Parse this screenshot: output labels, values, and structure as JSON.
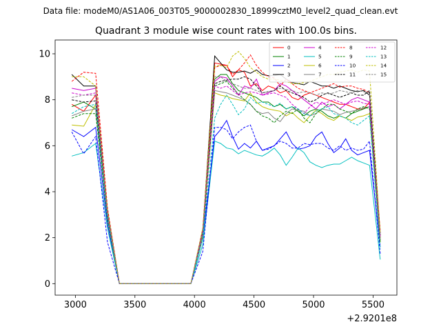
{
  "header": {
    "data_file": "Data file: modeM0/AS1A06_003T05_9000002830_18999cztM0_level2_quad_clean.evt"
  },
  "chart_data": {
    "type": "line",
    "title": "Quadrant 3 module wise count rates with 100.0s bins.",
    "xlabel": "",
    "ylabel": "",
    "x_offset_label": "+2.9201e8",
    "xlim": [
      2830,
      5700
    ],
    "ylim": [
      -0.5,
      10.6
    ],
    "xticks": [
      3000,
      3500,
      4000,
      4500,
      5000,
      5500
    ],
    "xtick_labels": [
      "3000",
      "3500",
      "4000",
      "4500",
      "5000",
      "5500"
    ],
    "yticks": [
      0,
      2,
      4,
      6,
      8,
      10
    ],
    "ytick_labels": [
      "0",
      "2",
      "4",
      "6",
      "8",
      "10"
    ],
    "grid": false,
    "legend_position": "top-right",
    "x": [
      2970,
      3070,
      3170,
      3270,
      3370,
      3470,
      3570,
      3670,
      3770,
      3870,
      3970,
      4070,
      4170,
      4220,
      4270,
      4320,
      4370,
      4420,
      4470,
      4520,
      4570,
      4620,
      4670,
      4720,
      4770,
      4820,
      4870,
      4920,
      4970,
      5020,
      5070,
      5120,
      5170,
      5220,
      5270,
      5320,
      5370,
      5420,
      5470,
      5560
    ],
    "series": [
      {
        "name": "0",
        "color": "#ff0000",
        "dash": "solid",
        "values": [
          7.8,
          7.5,
          8.2,
          3.0,
          0,
          0,
          0,
          0,
          0,
          0,
          0,
          2.2,
          9.6,
          9.55,
          9.5,
          9.0,
          9.3,
          9.2,
          8.6,
          8.7,
          8.4,
          8.6,
          8.5,
          8.3,
          8.4,
          8.1,
          8.0,
          8.2,
          8.3,
          8.2,
          8.1,
          8.0,
          7.9,
          7.8,
          7.8,
          7.7,
          7.6,
          7.6,
          7.9,
          2.0
        ]
      },
      {
        "name": "1",
        "color": "#008000",
        "dash": "solid",
        "values": [
          7.7,
          7.9,
          7.6,
          2.9,
          0,
          0,
          0,
          0,
          0,
          0,
          0,
          2.1,
          8.9,
          9.1,
          9.1,
          8.7,
          8.4,
          8.3,
          8.2,
          8.1,
          7.9,
          7.9,
          7.7,
          7.8,
          7.6,
          7.7,
          7.5,
          7.3,
          7.5,
          7.6,
          7.5,
          7.3,
          7.2,
          7.3,
          7.2,
          7.4,
          7.5,
          7.6,
          7.7,
          1.9
        ]
      },
      {
        "name": "2",
        "color": "#0000ff",
        "dash": "solid",
        "values": [
          6.7,
          6.4,
          6.8,
          2.6,
          0,
          0,
          0,
          0,
          0,
          0,
          0,
          2.0,
          6.4,
          6.7,
          7.1,
          6.4,
          5.85,
          6.1,
          5.9,
          6.2,
          5.8,
          5.9,
          6.0,
          6.3,
          6.6,
          6.1,
          5.85,
          5.9,
          6.0,
          6.4,
          6.6,
          6.1,
          5.7,
          5.9,
          6.3,
          5.8,
          5.6,
          5.7,
          5.8,
          1.6
        ]
      },
      {
        "name": "3",
        "color": "#000000",
        "dash": "solid",
        "values": [
          9.1,
          8.6,
          8.6,
          3.2,
          0,
          0,
          0,
          0,
          0,
          0,
          0,
          2.3,
          9.9,
          9.6,
          9.3,
          9.2,
          9.2,
          9.25,
          9.15,
          9.3,
          9.1,
          9.05,
          9.05,
          9.1,
          8.9,
          8.75,
          8.7,
          8.65,
          8.8,
          8.7,
          8.6,
          8.6,
          8.5,
          8.6,
          8.5,
          8.4,
          8.35,
          8.4,
          8.2,
          2.2
        ]
      },
      {
        "name": "4",
        "color": "#cc00cc",
        "dash": "solid",
        "values": [
          8.5,
          8.4,
          8.5,
          3.1,
          0,
          0,
          0,
          0,
          0,
          0,
          0,
          2.3,
          8.8,
          9.0,
          8.95,
          8.6,
          8.2,
          8.6,
          8.5,
          8.9,
          8.2,
          8.3,
          8.4,
          8.7,
          8.6,
          8.4,
          8.2,
          8.0,
          7.8,
          7.6,
          7.9,
          7.7,
          7.8,
          7.6,
          7.8,
          8.0,
          8.1,
          8.0,
          7.9,
          2.1
        ]
      },
      {
        "name": "5",
        "color": "#00bfbf",
        "dash": "solid",
        "values": [
          5.55,
          5.7,
          6.1,
          2.4,
          0,
          0,
          0,
          0,
          0,
          0,
          0,
          1.7,
          6.2,
          6.1,
          5.9,
          5.85,
          5.65,
          5.8,
          5.7,
          5.6,
          5.55,
          5.7,
          5.9,
          5.6,
          5.15,
          5.5,
          5.9,
          5.7,
          5.3,
          5.15,
          5.05,
          5.15,
          5.2,
          5.2,
          5.35,
          5.5,
          5.35,
          5.25,
          5.15,
          1.05
        ]
      },
      {
        "name": "6",
        "color": "#bfbf00",
        "dash": "solid",
        "values": [
          6.9,
          6.85,
          7.8,
          2.8,
          0,
          0,
          0,
          0,
          0,
          0,
          0,
          2.1,
          8.3,
          8.2,
          8.15,
          8.05,
          8.0,
          7.95,
          8.3,
          7.9,
          7.7,
          7.6,
          7.55,
          7.5,
          7.3,
          7.45,
          7.2,
          7.0,
          7.3,
          7.55,
          7.4,
          7.2,
          7.1,
          7.3,
          7.2,
          7.1,
          7.25,
          7.3,
          7.4,
          1.8
        ]
      },
      {
        "name": "7",
        "color": "#808080",
        "dash": "solid",
        "values": [
          7.3,
          7.5,
          7.6,
          2.9,
          0,
          0,
          0,
          0,
          0,
          0,
          0,
          2.2,
          8.4,
          8.35,
          8.3,
          8.2,
          8.1,
          8.0,
          7.8,
          7.5,
          7.4,
          7.45,
          7.2,
          7.05,
          7.4,
          7.6,
          7.55,
          7.5,
          7.3,
          7.4,
          7.6,
          7.55,
          7.5,
          7.35,
          7.45,
          7.5,
          7.55,
          7.65,
          7.7,
          1.9
        ]
      },
      {
        "name": "8",
        "color": "#ff0000",
        "dash": "dashed",
        "values": [
          8.8,
          9.2,
          9.15,
          3.3,
          0,
          0,
          0,
          0,
          0,
          0,
          0,
          2.4,
          9.4,
          9.5,
          9.5,
          9.1,
          9.3,
          9.6,
          9.95,
          9.5,
          9.2,
          9.0,
          8.95,
          8.6,
          8.9,
          8.7,
          8.5,
          8.4,
          8.3,
          8.4,
          8.5,
          8.6,
          8.7,
          8.55,
          8.6,
          8.6,
          8.5,
          8.45,
          8.3,
          2.3
        ]
      },
      {
        "name": "9",
        "color": "#008000",
        "dash": "dashed",
        "values": [
          7.2,
          7.4,
          7.4,
          2.8,
          0,
          0,
          0,
          0,
          0,
          0,
          0,
          2.0,
          8.6,
          8.7,
          8.8,
          8.5,
          8.25,
          8.0,
          7.8,
          7.5,
          7.3,
          7.2,
          7.0,
          7.3,
          7.5,
          7.4,
          7.6,
          7.2,
          7.0,
          7.4,
          7.6,
          7.8,
          7.8,
          7.6,
          7.5,
          7.4,
          7.6,
          7.7,
          7.6,
          1.8
        ]
      },
      {
        "name": "10",
        "color": "#0000ff",
        "dash": "dashed",
        "values": [
          6.6,
          5.65,
          6.4,
          1.8,
          0,
          0,
          0,
          0,
          0,
          0,
          0,
          1.4,
          6.8,
          6.8,
          6.7,
          6.3,
          6.6,
          6.8,
          6.9,
          6.2,
          5.8,
          5.85,
          6.0,
          6.2,
          6.1,
          5.9,
          5.9,
          6.1,
          6.05,
          6.1,
          6.1,
          5.9,
          5.8,
          6.0,
          5.8,
          5.9,
          5.8,
          5.85,
          6.2,
          1.3
        ]
      },
      {
        "name": "11",
        "color": "#000000",
        "dash": "dashed",
        "values": [
          8.0,
          7.9,
          7.95,
          3.0,
          0,
          0,
          0,
          0,
          0,
          0,
          0,
          2.3,
          8.7,
          8.8,
          8.85,
          8.9,
          8.9,
          9.0,
          8.9,
          8.6,
          8.3,
          8.35,
          8.4,
          8.6,
          8.4,
          8.3,
          8.2,
          8.1,
          7.9,
          8.0,
          8.2,
          8.3,
          8.2,
          8.1,
          8.2,
          8.3,
          8.2,
          8.2,
          8.4,
          2.1
        ]
      },
      {
        "name": "12",
        "color": "#cc00cc",
        "dash": "dashed",
        "values": [
          8.3,
          8.2,
          8.3,
          3.0,
          0,
          0,
          0,
          0,
          0,
          0,
          0,
          2.2,
          8.6,
          8.5,
          8.6,
          8.4,
          8.2,
          8.3,
          8.35,
          8.3,
          8.2,
          8.25,
          8.3,
          8.2,
          8.1,
          7.8,
          7.6,
          7.4,
          7.7,
          7.9,
          7.8,
          7.9,
          8.0,
          7.9,
          7.8,
          7.9,
          7.95,
          7.85,
          7.8,
          2.0
        ]
      },
      {
        "name": "13",
        "color": "#00bfbf",
        "dash": "dashed",
        "values": [
          7.4,
          7.7,
          7.8,
          2.9,
          0,
          0,
          0,
          0,
          0,
          0,
          0,
          2.0,
          7.2,
          7.8,
          8.2,
          7.8,
          7.35,
          7.6,
          8.1,
          7.85,
          7.9,
          7.8,
          7.7,
          7.85,
          7.6,
          7.7,
          7.6,
          7.4,
          7.3,
          7.5,
          7.6,
          7.7,
          7.4,
          7.3,
          7.2,
          7.0,
          6.9,
          7.1,
          7.3,
          1.5
        ]
      },
      {
        "name": "14",
        "color": "#bfbf00",
        "dash": "dashed",
        "values": [
          9.0,
          9.0,
          8.6,
          3.2,
          0,
          0,
          0,
          0,
          0,
          0,
          0,
          2.4,
          9.45,
          9.5,
          9.4,
          9.9,
          10.1,
          9.8,
          9.4,
          9.2,
          9.0,
          8.9,
          8.9,
          8.85,
          8.8,
          8.7,
          8.7,
          8.75,
          8.8,
          8.9,
          9.0,
          9.1,
          9.1,
          9.2,
          9.25,
          9.3,
          9.2,
          9.3,
          9.25,
          2.2
        ]
      },
      {
        "name": "15",
        "color": "#808080",
        "dash": "dashed",
        "values": [
          8.1,
          8.2,
          8.2,
          3.1,
          0,
          0,
          0,
          0,
          0,
          0,
          0,
          2.3,
          9.0,
          9.0,
          8.8,
          8.7,
          8.6,
          8.5,
          8.5,
          8.4,
          8.3,
          8.35,
          8.4,
          8.5,
          8.45,
          8.4,
          8.3,
          8.35,
          8.3,
          8.2,
          8.3,
          8.25,
          8.3,
          8.4,
          8.35,
          8.3,
          8.4,
          8.35,
          8.3,
          2.0
        ]
      }
    ]
  }
}
